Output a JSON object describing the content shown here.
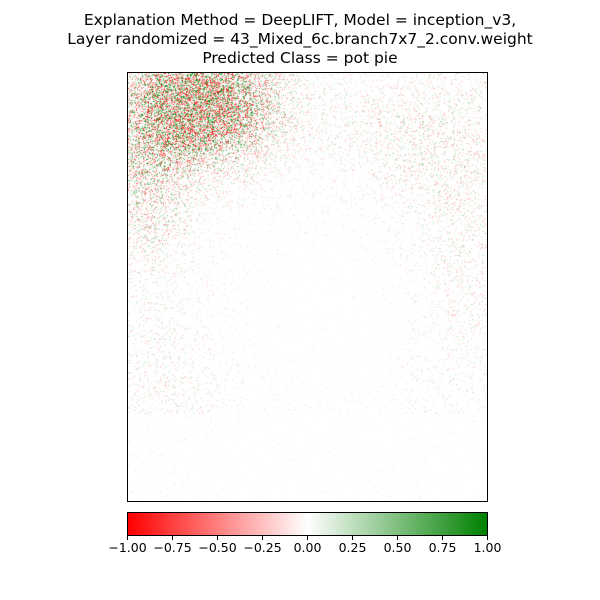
{
  "title": {
    "line1": "Explanation Method = DeepLIFT, Model = inception_v3,",
    "line2": "Layer randomized = 43_Mixed_6c.branch7x7_2.conv.weight",
    "line3": "Predicted Class = pot pie"
  },
  "colorbar": {
    "min": -1.0,
    "max": 1.0,
    "colors": {
      "negative": "#ff0000",
      "neutral": "#ffffff",
      "positive": "#008000"
    },
    "ticks": [
      "−1.00",
      "−0.75",
      "−0.50",
      "−0.25",
      "0.00",
      "0.25",
      "0.50",
      "0.75",
      "1.00"
    ],
    "tick_values": [
      -1.0,
      -0.75,
      -0.5,
      -0.25,
      0.0,
      0.25,
      0.5,
      0.75,
      1.0
    ]
  },
  "heatmap": {
    "colormap": "red-white-green",
    "value_range": [
      -1.0,
      1.0
    ]
  }
}
